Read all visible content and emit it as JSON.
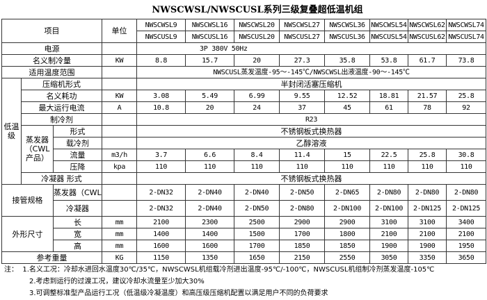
{
  "title": "NWSCWSL/NWSCUSL系列三级复叠超低温机组",
  "header": {
    "item": "项目",
    "unit": "单位",
    "models_cw": [
      "NWSCWSL9",
      "NWSCWSL16",
      "NWSCWSL20",
      "NWSCWSL27",
      "NWSCWSL36",
      "NWSCWSL54",
      "NWSCWSL62",
      "NWSCWSL74"
    ],
    "models_cu": [
      "NWSCUSL9",
      "NWSCUSL16",
      "NWSCUSL20",
      "NWSCUSL27",
      "NWSCUSL36",
      "NWSCUSL54",
      "NWSCUSL62",
      "NWSCUSL74"
    ]
  },
  "rows": {
    "power": {
      "label": "电源",
      "value": "3P    380V    50Hz"
    },
    "capacity": {
      "label": "名义制冷量",
      "unit": "KW",
      "values": [
        "8.8",
        "15.7",
        "20",
        "27.3",
        "35.8",
        "53.8",
        "61.7",
        "73.8"
      ]
    },
    "temp_range": {
      "label": "适用温度范围",
      "value": "NWSCUSL蒸发温度-95～-145℃/NWSCWSL出液温度-90～-145℃"
    },
    "low_stage": "低温级",
    "compressor": {
      "label": "压缩机形式",
      "value": "半封闭活塞压缩机"
    },
    "power_input": {
      "label": "名义耗功",
      "unit": "KW",
      "values": [
        "3.08",
        "5.49",
        "6.99",
        "9.55",
        "12.52",
        "18.81",
        "21.57",
        "25.8"
      ]
    },
    "max_current": {
      "label": "最大运行电流",
      "unit": "A",
      "values": [
        "10.8",
        "20",
        "24",
        "37",
        "45",
        "61",
        "78",
        "92"
      ]
    },
    "refrigerant": {
      "label": "制冷剂",
      "value": "R23"
    },
    "evaporator": "蒸发器（CWL产品）",
    "evap_type": {
      "label": "形式",
      "value": "不锈钢板式换热器"
    },
    "coolant": {
      "label": "载冷剂",
      "value": "乙醇溶液"
    },
    "flow": {
      "label": "流量",
      "unit": "m3/h",
      "values": [
        "3.7",
        "6.6",
        "8.4",
        "11.4",
        "15",
        "22.5",
        "25.8",
        "30.8"
      ]
    },
    "pressure_drop": {
      "label": "压降",
      "unit": "kpa",
      "values": [
        "110",
        "110",
        "110",
        "110",
        "110",
        "110",
        "110",
        "110"
      ]
    },
    "condenser": {
      "label": "冷凝器   形式",
      "value": "不锈钢板式换热器"
    },
    "piping": {
      "label": "接管规格",
      "evap": {
        "label": "蒸发器（CWL）",
        "values": [
          "2-DN32",
          "2-DN40",
          "2-DN40",
          "2-DN50",
          "2-DN65",
          "2-DN80",
          "2-DN80",
          "2-DN80"
        ]
      },
      "cond": {
        "label": "冷凝器",
        "values": [
          "2-DN32",
          "2-DN40",
          "2-DN50",
          "2-DN80",
          "2-DN100",
          "2-DN100",
          "2-DN125",
          "2-DN125"
        ]
      }
    },
    "dims": {
      "label": "外形尺寸",
      "length": {
        "label": "长",
        "unit": "mm",
        "values": [
          "2100",
          "2300",
          "2500",
          "2900",
          "2900",
          "3100",
          "3100",
          "3400"
        ]
      },
      "width": {
        "label": "宽",
        "unit": "mm",
        "values": [
          "1400",
          "1400",
          "1500",
          "1700",
          "1800",
          "2100",
          "2100",
          "2100"
        ]
      },
      "height": {
        "label": "高",
        "unit": "mm",
        "values": [
          "1600",
          "1600",
          "1700",
          "1850",
          "1850",
          "1900",
          "1900",
          "1950"
        ]
      }
    },
    "weight": {
      "label": "参考重量",
      "unit": "KG",
      "values": [
        "1150",
        "1350",
        "1650",
        "2150",
        "2550",
        "3050",
        "3350",
        "3650"
      ]
    }
  },
  "notes": {
    "prefix": "注：",
    "items": [
      "1.名义工况：冷却水进回水温度30℃/35℃，NWSCWSL机组载冷剂进出温度-95℃/-100℃，NWSCUSL机组制冷剂蒸发温度-105℃",
      "2.考虑到运行的过渡工况，建议冷却水流量至少加大30%",
      "3.可调整标准型产品运行工况（低温级冷凝温度）和高压级压缩机配置以满足用户不同的负荷要求"
    ]
  }
}
